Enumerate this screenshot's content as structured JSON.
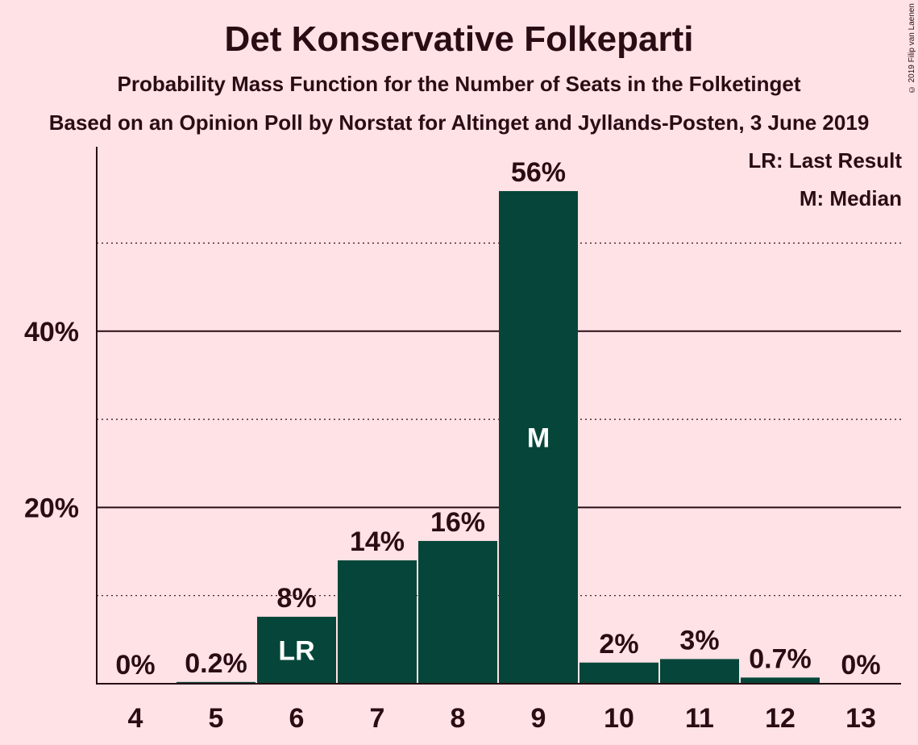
{
  "header": {
    "title": "Det Konservative Folkeparti",
    "subtitle": "Probability Mass Function for the Number of Seats in the Folketinget",
    "subtitle2": "Based on an Opinion Poll by Norstat for Altinget and Jyllands-Posten, 3 June 2019",
    "copyright": "© 2019 Filip van Laenen"
  },
  "legend": {
    "lr": "LR: Last Result",
    "m": "M: Median"
  },
  "colors": {
    "background": "#FFE2E5",
    "bar": "#06463A",
    "text": "#2a0c14"
  },
  "chart_data": {
    "type": "bar",
    "categories": [
      "4",
      "5",
      "6",
      "7",
      "8",
      "9",
      "10",
      "11",
      "12",
      "13"
    ],
    "values": [
      0,
      0.2,
      7.6,
      14.0,
      16.2,
      55.9,
      2.4,
      2.8,
      0.7,
      0
    ],
    "value_labels": [
      "0%",
      "0.2%",
      "8%",
      "14%",
      "16%",
      "56%",
      "2%",
      "3%",
      "0.7%",
      "0%"
    ],
    "bar_markers": {
      "6": "LR",
      "9": "M"
    },
    "yticks": [
      20,
      40
    ],
    "ytick_labels": [
      "20%",
      "40%"
    ],
    "minor_gridlines": [
      10,
      30,
      50
    ],
    "ylim": [
      0,
      61
    ],
    "grid": true,
    "legend_position": "top-right"
  }
}
